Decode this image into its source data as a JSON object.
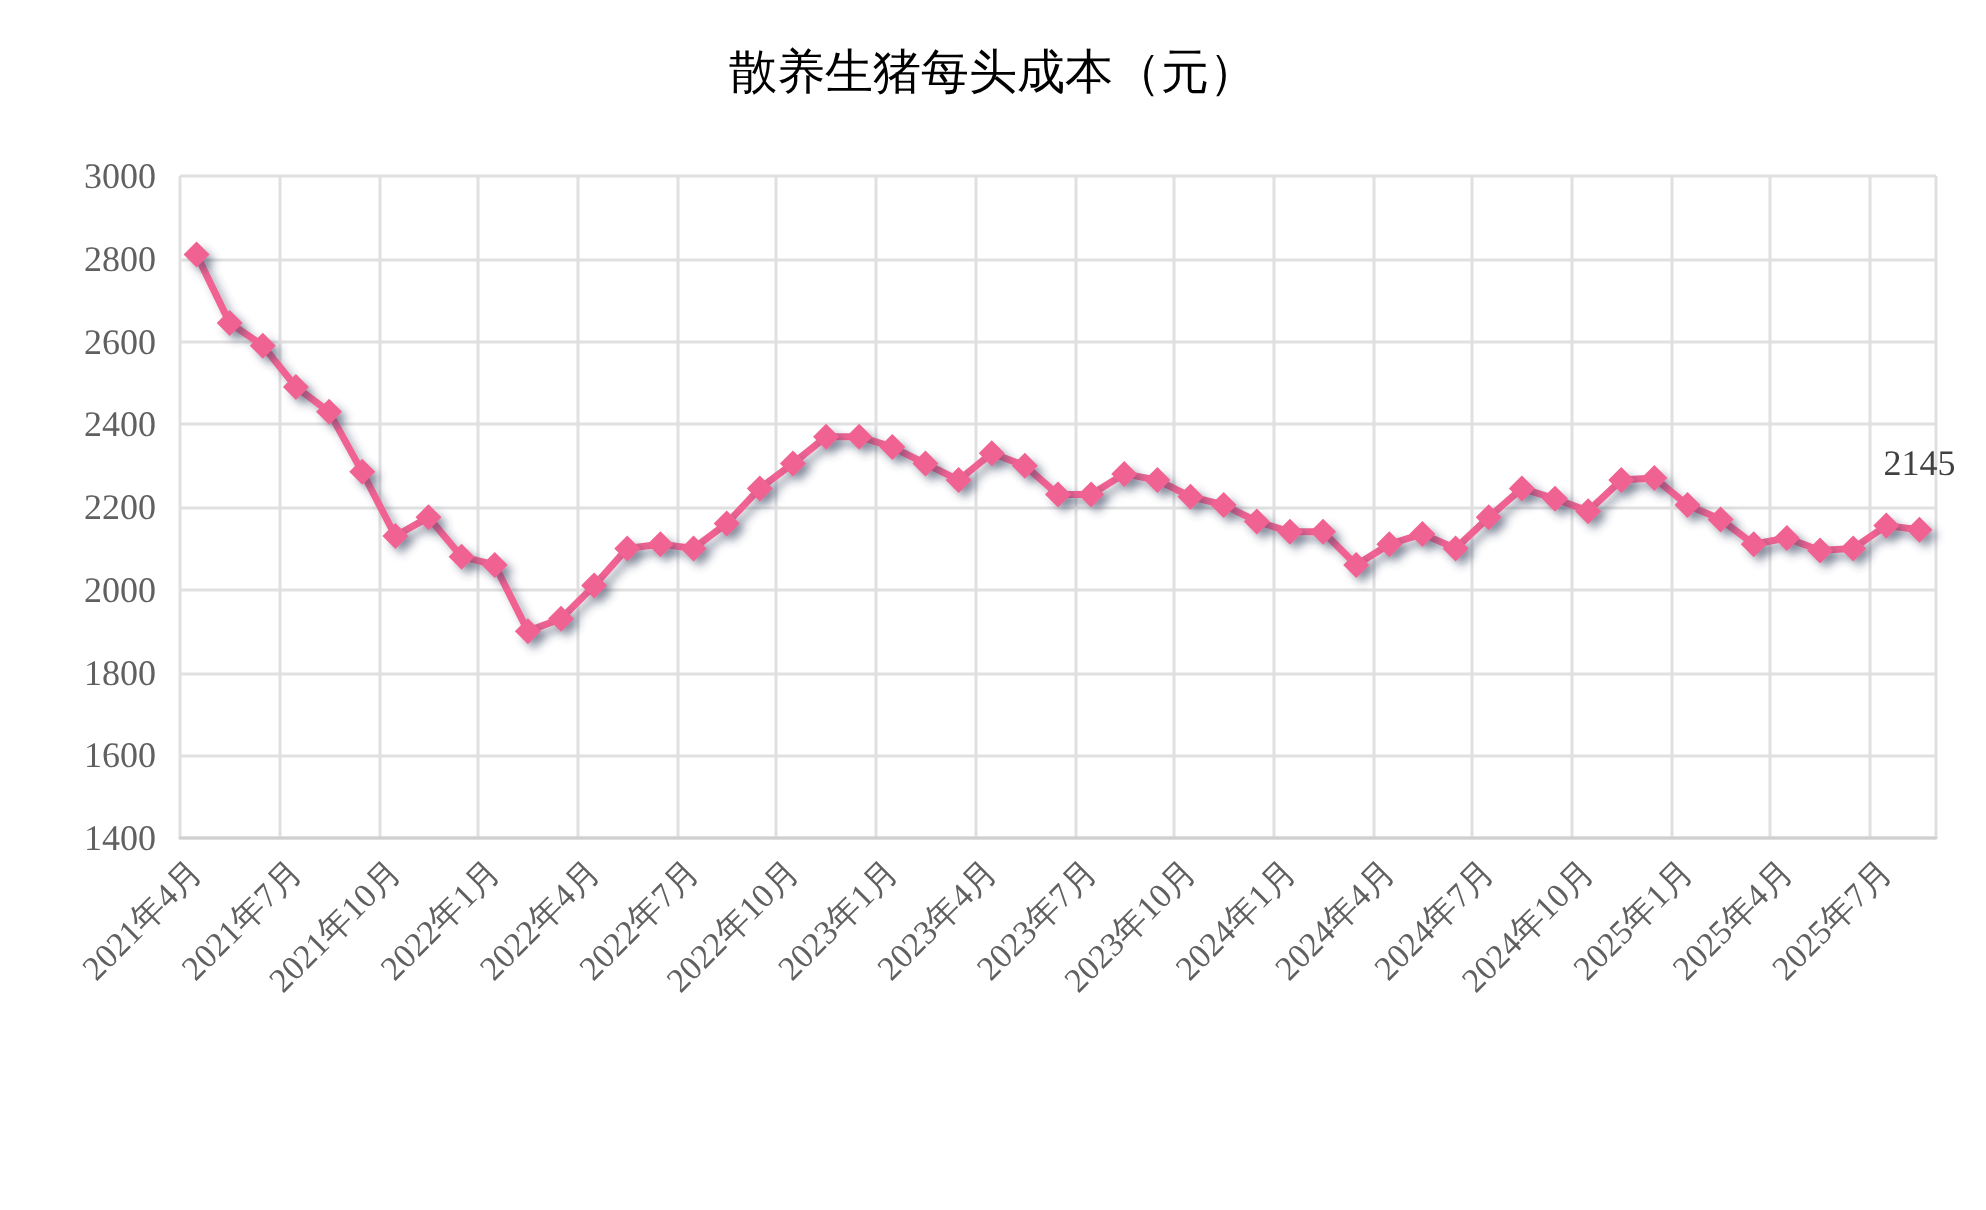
{
  "chart_data": {
    "type": "line",
    "title": "散养生猪每头成本（元）",
    "categories": [
      "2021年4月",
      null,
      null,
      "2021年7月",
      null,
      null,
      "2021年10月",
      null,
      null,
      "2022年1月",
      null,
      null,
      "2022年4月",
      null,
      null,
      "2022年7月",
      null,
      null,
      "2022年10月",
      null,
      null,
      "2023年1月",
      null,
      null,
      "2023年4月",
      null,
      null,
      "2023年7月",
      null,
      null,
      "2023年10月",
      null,
      null,
      "2024年1月",
      null,
      null,
      "2024年4月",
      null,
      null,
      "2024年7月",
      null,
      null,
      "2024年10月",
      null,
      null,
      "2025年1月",
      null,
      null,
      "2025年4月",
      null,
      null,
      "2025年7月",
      null
    ],
    "series": [
      {
        "color": "#f06292",
        "values": [
          2810,
          2645,
          2590,
          2490,
          2430,
          2285,
          2130,
          2175,
          2080,
          2060,
          1900,
          1930,
          2010,
          2100,
          2110,
          2100,
          2160,
          2245,
          2305,
          2370,
          2370,
          2345,
          2305,
          2265,
          2330,
          2300,
          2230,
          2230,
          2280,
          2265,
          2225,
          2205,
          2165,
          2140,
          2140,
          2060,
          2110,
          2135,
          2100,
          2175,
          2245,
          2220,
          2190,
          2265,
          2270,
          2205,
          2170,
          2110,
          2125,
          2095,
          2100,
          2155,
          2145
        ],
        "value_labels": [
          null,
          null,
          null,
          null,
          null,
          null,
          null,
          null,
          null,
          null,
          null,
          null,
          null,
          null,
          null,
          null,
          null,
          null,
          null,
          null,
          null,
          null,
          null,
          null,
          null,
          null,
          null,
          null,
          null,
          null,
          null,
          null,
          null,
          null,
          null,
          null,
          null,
          null,
          null,
          null,
          null,
          null,
          null,
          null,
          null,
          null,
          null,
          null,
          null,
          null,
          null,
          null,
          "2145"
        ]
      }
    ],
    "ylim": [
      1400,
      3000
    ],
    "yticks": [
      1400,
      1600,
      1800,
      2000,
      2200,
      2400,
      2600,
      2800,
      3000
    ],
    "grid": true,
    "marker": "diamond",
    "line_style": "solid"
  }
}
